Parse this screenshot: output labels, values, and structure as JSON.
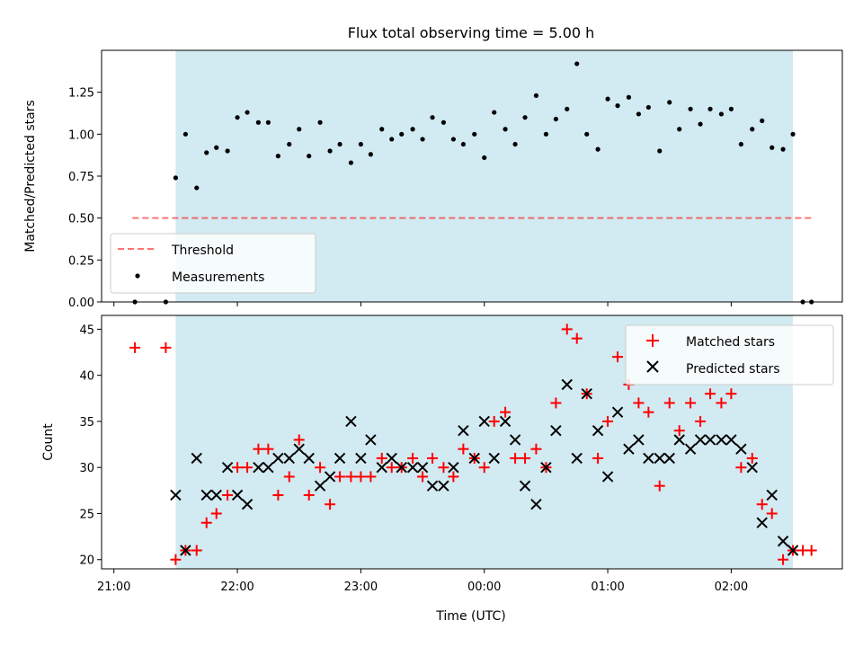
{
  "title": "Flux total observing time = 5.00 h",
  "x_axis": {
    "label": "Time (UTC)",
    "ticks": [
      "21:00",
      "22:00",
      "23:00",
      "00:00",
      "01:00",
      "02:00"
    ]
  },
  "colors": {
    "shade": "#add8e6",
    "threshold": "#ff0000",
    "matched": "#ff0000",
    "predicted": "#000000",
    "measurements": "#000000"
  },
  "chart_data": [
    {
      "type": "scatter",
      "panel": "top",
      "ylabel": "Matched/Predicted stars",
      "ylim": [
        0,
        1.5
      ],
      "yticks": [
        "0.00",
        "0.25",
        "0.50",
        "0.75",
        "1.00",
        "1.25"
      ],
      "x_unit": "hours relative to 00:00 UTC",
      "shaded_range": [
        -2.5,
        2.5
      ],
      "threshold": {
        "name": "Threshold",
        "value": 0.5,
        "x_range": [
          -2.85,
          2.65
        ]
      },
      "series": [
        {
          "name": "Measurements",
          "points": [
            [
              -2.83,
              0.0
            ],
            [
              -2.58,
              0.0
            ],
            [
              -2.5,
              0.74
            ],
            [
              -2.42,
              1.0
            ],
            [
              -2.33,
              0.68
            ],
            [
              -2.25,
              0.89
            ],
            [
              -2.17,
              0.92
            ],
            [
              -2.08,
              0.9
            ],
            [
              -2.0,
              1.1
            ],
            [
              -1.92,
              1.13
            ],
            [
              -1.83,
              1.07
            ],
            [
              -1.75,
              1.07
            ],
            [
              -1.67,
              0.87
            ],
            [
              -1.58,
              0.94
            ],
            [
              -1.5,
              1.03
            ],
            [
              -1.42,
              0.87
            ],
            [
              -1.33,
              1.07
            ],
            [
              -1.25,
              0.9
            ],
            [
              -1.17,
              0.94
            ],
            [
              -1.08,
              0.83
            ],
            [
              -1.0,
              0.94
            ],
            [
              -0.92,
              0.88
            ],
            [
              -0.83,
              1.03
            ],
            [
              -0.75,
              0.97
            ],
            [
              -0.67,
              1.0
            ],
            [
              -0.58,
              1.03
            ],
            [
              -0.5,
              0.97
            ],
            [
              -0.42,
              1.1
            ],
            [
              -0.33,
              1.07
            ],
            [
              -0.25,
              0.97
            ],
            [
              -0.17,
              0.94
            ],
            [
              -0.08,
              1.0
            ],
            [
              0.0,
              0.86
            ],
            [
              0.08,
              1.13
            ],
            [
              0.17,
              1.03
            ],
            [
              0.25,
              0.94
            ],
            [
              0.33,
              1.1
            ],
            [
              0.42,
              1.23
            ],
            [
              0.5,
              1.0
            ],
            [
              0.58,
              1.09
            ],
            [
              0.67,
              1.15
            ],
            [
              0.75,
              1.42
            ],
            [
              0.83,
              1.0
            ],
            [
              0.92,
              0.91
            ],
            [
              1.0,
              1.21
            ],
            [
              1.08,
              1.17
            ],
            [
              1.17,
              1.22
            ],
            [
              1.25,
              1.12
            ],
            [
              1.33,
              1.16
            ],
            [
              1.42,
              0.9
            ],
            [
              1.5,
              1.19
            ],
            [
              1.58,
              1.03
            ],
            [
              1.67,
              1.15
            ],
            [
              1.75,
              1.06
            ],
            [
              1.83,
              1.15
            ],
            [
              1.92,
              1.12
            ],
            [
              2.0,
              1.15
            ],
            [
              2.08,
              0.94
            ],
            [
              2.17,
              1.03
            ],
            [
              2.25,
              1.08
            ],
            [
              2.33,
              0.92
            ],
            [
              2.42,
              0.91
            ],
            [
              2.5,
              1.0
            ],
            [
              2.58,
              0.0
            ],
            [
              2.65,
              0.0
            ]
          ]
        }
      ]
    },
    {
      "type": "scatter",
      "panel": "bottom",
      "ylabel": "Count",
      "ylim": [
        19,
        46.5
      ],
      "yticks": [
        "20",
        "25",
        "30",
        "35",
        "40",
        "45"
      ],
      "x_unit": "hours relative to 00:00 UTC",
      "shaded_range": [
        -2.5,
        2.5
      ],
      "series": [
        {
          "name": "Matched stars",
          "marker": "plus",
          "points": [
            [
              -2.83,
              43
            ],
            [
              -2.58,
              43
            ],
            [
              -2.5,
              20
            ],
            [
              -2.42,
              21
            ],
            [
              -2.33,
              21
            ],
            [
              -2.25,
              24
            ],
            [
              -2.17,
              25
            ],
            [
              -2.08,
              27
            ],
            [
              -2.0,
              30
            ],
            [
              -1.92,
              30
            ],
            [
              -1.83,
              32
            ],
            [
              -1.75,
              32
            ],
            [
              -1.67,
              27
            ],
            [
              -1.58,
              29
            ],
            [
              -1.5,
              33
            ],
            [
              -1.42,
              27
            ],
            [
              -1.33,
              30
            ],
            [
              -1.25,
              26
            ],
            [
              -1.17,
              29
            ],
            [
              -1.08,
              29
            ],
            [
              -1.0,
              29
            ],
            [
              -0.92,
              29
            ],
            [
              -0.83,
              31
            ],
            [
              -0.75,
              30
            ],
            [
              -0.67,
              30
            ],
            [
              -0.58,
              31
            ],
            [
              -0.5,
              29
            ],
            [
              -0.42,
              31
            ],
            [
              -0.33,
              30
            ],
            [
              -0.25,
              29
            ],
            [
              -0.17,
              32
            ],
            [
              -0.08,
              31
            ],
            [
              0.0,
              30
            ],
            [
              0.08,
              35
            ],
            [
              0.17,
              36
            ],
            [
              0.25,
              31
            ],
            [
              0.33,
              31
            ],
            [
              0.42,
              32
            ],
            [
              0.5,
              30
            ],
            [
              0.58,
              37
            ],
            [
              0.67,
              45
            ],
            [
              0.75,
              44
            ],
            [
              0.83,
              38
            ],
            [
              0.92,
              31
            ],
            [
              1.0,
              35
            ],
            [
              1.08,
              42
            ],
            [
              1.17,
              39
            ],
            [
              1.25,
              37
            ],
            [
              1.33,
              36
            ],
            [
              1.42,
              28
            ],
            [
              1.5,
              37
            ],
            [
              1.58,
              34
            ],
            [
              1.67,
              37
            ],
            [
              1.75,
              35
            ],
            [
              1.83,
              38
            ],
            [
              1.92,
              37
            ],
            [
              2.0,
              38
            ],
            [
              2.08,
              30
            ],
            [
              2.17,
              31
            ],
            [
              2.25,
              26
            ],
            [
              2.33,
              25
            ],
            [
              2.42,
              20
            ],
            [
              2.5,
              21
            ],
            [
              2.58,
              21
            ],
            [
              2.65,
              21
            ]
          ]
        },
        {
          "name": "Predicted stars",
          "marker": "x",
          "points": [
            [
              -2.5,
              27
            ],
            [
              -2.42,
              21
            ],
            [
              -2.33,
              31
            ],
            [
              -2.25,
              27
            ],
            [
              -2.17,
              27
            ],
            [
              -2.08,
              30
            ],
            [
              -2.0,
              27
            ],
            [
              -1.92,
              26
            ],
            [
              -1.83,
              30
            ],
            [
              -1.75,
              30
            ],
            [
              -1.67,
              31
            ],
            [
              -1.58,
              31
            ],
            [
              -1.5,
              32
            ],
            [
              -1.42,
              31
            ],
            [
              -1.33,
              28
            ],
            [
              -1.25,
              29
            ],
            [
              -1.17,
              31
            ],
            [
              -1.08,
              35
            ],
            [
              -1.0,
              31
            ],
            [
              -0.92,
              33
            ],
            [
              -0.83,
              30
            ],
            [
              -0.75,
              31
            ],
            [
              -0.67,
              30
            ],
            [
              -0.58,
              30
            ],
            [
              -0.5,
              30
            ],
            [
              -0.42,
              28
            ],
            [
              -0.33,
              28
            ],
            [
              -0.25,
              30
            ],
            [
              -0.17,
              34
            ],
            [
              -0.08,
              31
            ],
            [
              0.0,
              35
            ],
            [
              0.08,
              31
            ],
            [
              0.17,
              35
            ],
            [
              0.25,
              33
            ],
            [
              0.33,
              28
            ],
            [
              0.42,
              26
            ],
            [
              0.5,
              30
            ],
            [
              0.58,
              34
            ],
            [
              0.67,
              39
            ],
            [
              0.75,
              31
            ],
            [
              0.83,
              38
            ],
            [
              0.92,
              34
            ],
            [
              1.0,
              29
            ],
            [
              1.08,
              36
            ],
            [
              1.17,
              32
            ],
            [
              1.25,
              33
            ],
            [
              1.33,
              31
            ],
            [
              1.42,
              31
            ],
            [
              1.5,
              31
            ],
            [
              1.58,
              33
            ],
            [
              1.67,
              32
            ],
            [
              1.75,
              33
            ],
            [
              1.83,
              33
            ],
            [
              1.92,
              33
            ],
            [
              2.0,
              33
            ],
            [
              2.08,
              32
            ],
            [
              2.17,
              30
            ],
            [
              2.25,
              24
            ],
            [
              2.33,
              27
            ],
            [
              2.42,
              22
            ],
            [
              2.5,
              21
            ]
          ]
        }
      ]
    }
  ]
}
